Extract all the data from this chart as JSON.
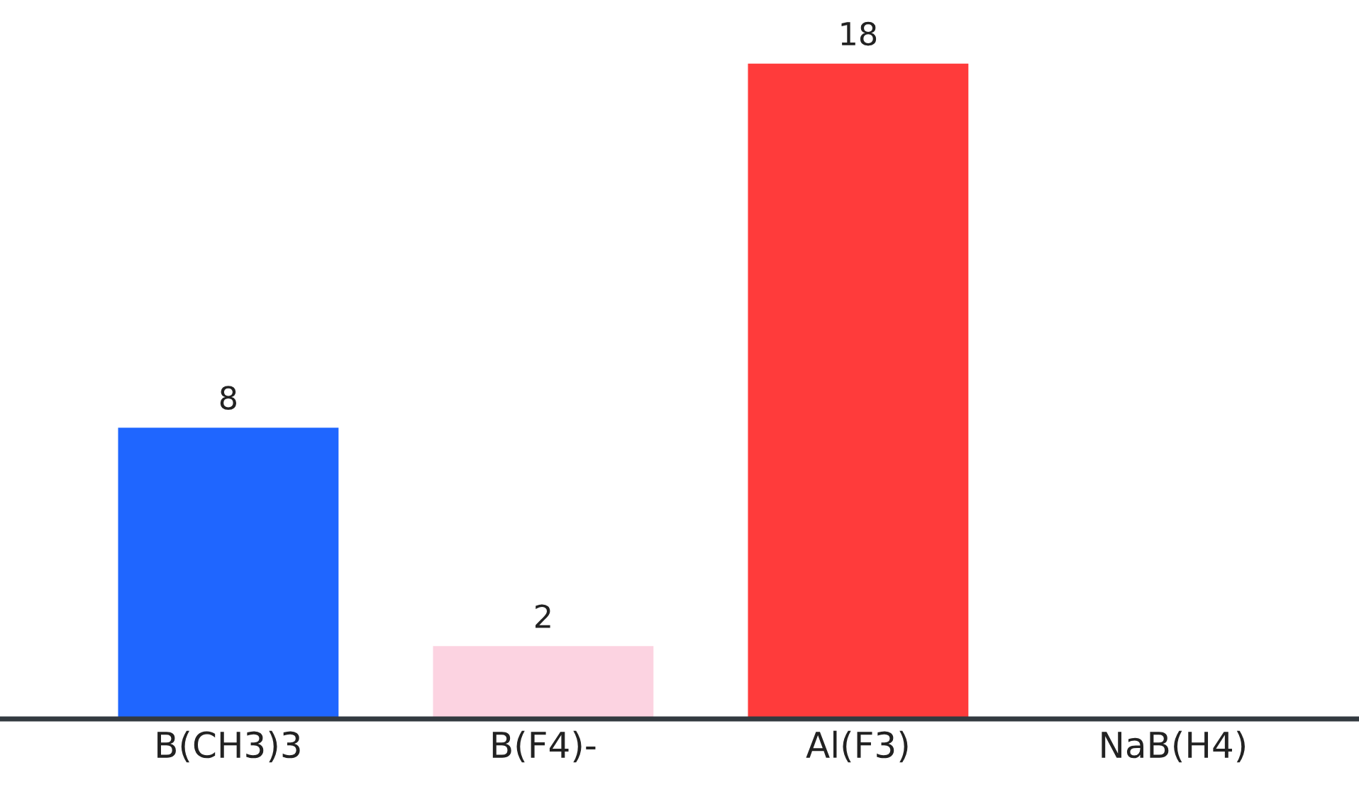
{
  "chart_data": {
    "type": "bar",
    "categories": [
      "B(CH3)3",
      "B(F4)-",
      "Al(F3)",
      "NaB(H4)"
    ],
    "values": [
      8,
      2,
      18,
      null
    ],
    "colors": [
      "#1f66ff",
      "#fcd3e1",
      "#ff3b3b",
      "#cccccc"
    ],
    "value_labels": [
      "8",
      "2",
      "18",
      null
    ],
    "grid": false,
    "legend": false
  }
}
